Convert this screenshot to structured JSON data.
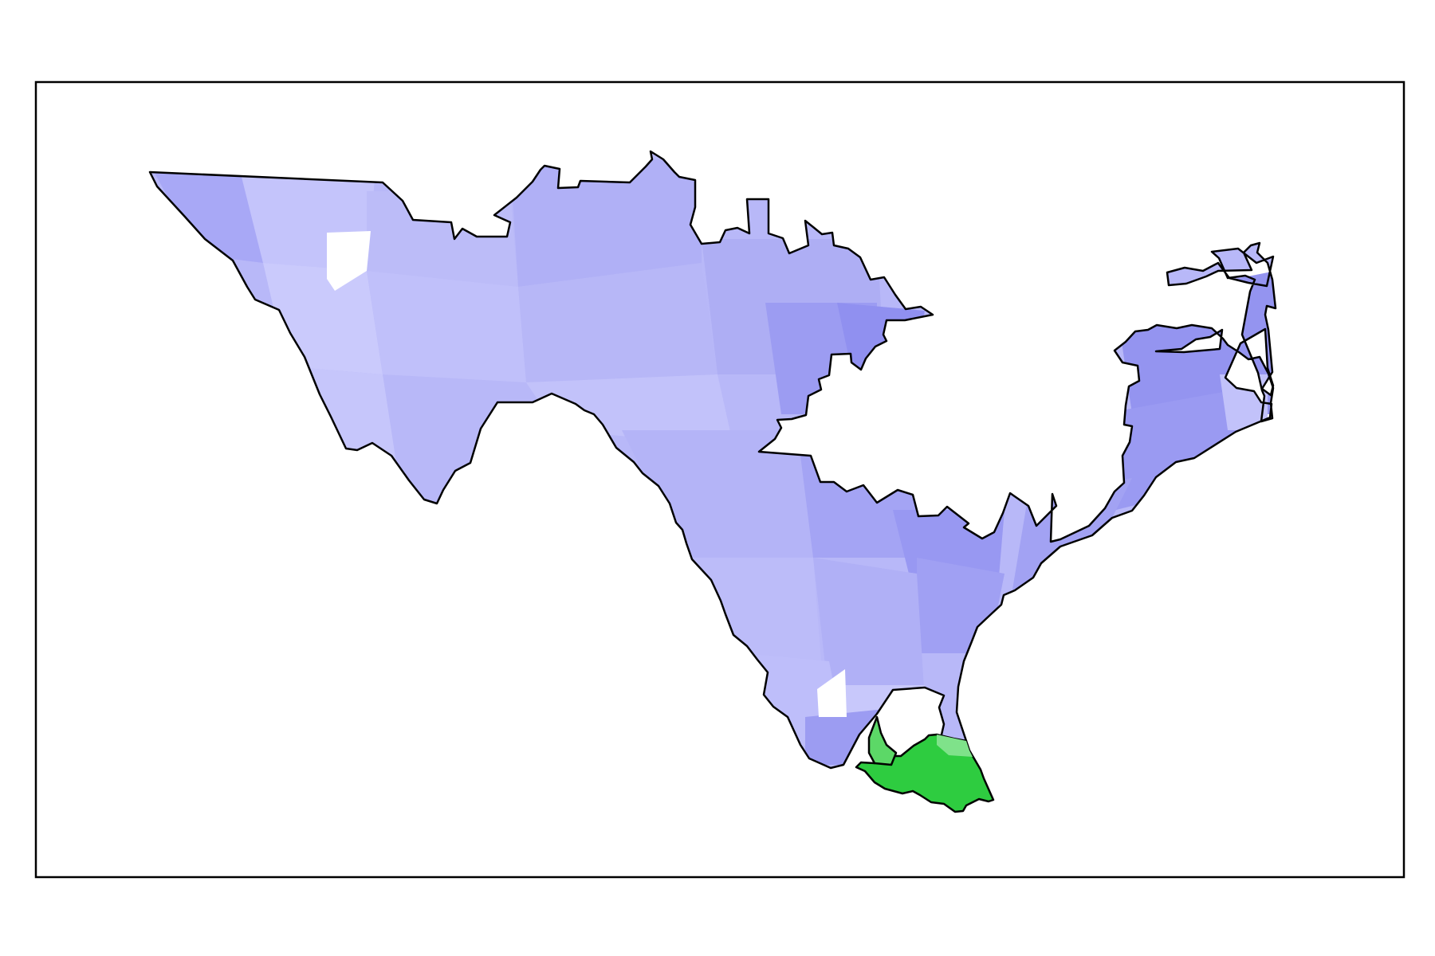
{
  "map": {
    "colors": {
      "background": "#ffffff",
      "frame": "#000000",
      "border": "#000000",
      "region_blue_light": "#c8c8fb",
      "region_blue_mid": "#b4b4f6",
      "region_blue_dark": "#8e8ef0",
      "region_green": "#2ecc40",
      "region_green_light": "#7fe28a",
      "gap": "#ffffff"
    },
    "regions": [
      {
        "name": "blue-district",
        "party_color": "blue"
      },
      {
        "name": "green-district",
        "party_color": "green"
      }
    ]
  }
}
